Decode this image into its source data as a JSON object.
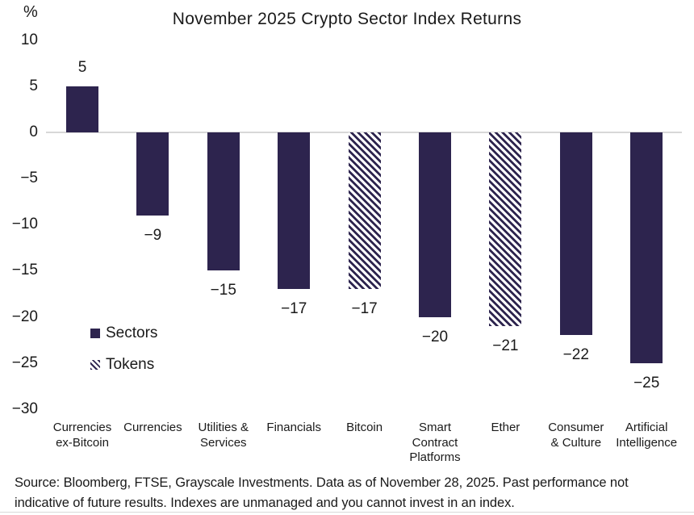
{
  "title": "November 2025 Crypto Sector Index Returns",
  "unit": "%",
  "chart_data": {
    "type": "bar",
    "title": "November 2025 Crypto Sector Index Returns",
    "unit": "%",
    "ylim": [
      -30,
      10
    ],
    "grid": "single horizontal gridline at 0 only",
    "legend_position": "inside plot, middle-left",
    "yticks": [
      {
        "value": 10,
        "label": "10"
      },
      {
        "value": 5,
        "label": "5"
      },
      {
        "value": 0,
        "label": "0"
      },
      {
        "value": -5,
        "label": "−5"
      },
      {
        "value": -10,
        "label": "−10"
      },
      {
        "value": -15,
        "label": "−15"
      },
      {
        "value": -20,
        "label": "−20"
      },
      {
        "value": -25,
        "label": "−25"
      },
      {
        "value": -30,
        "label": "−30"
      }
    ],
    "points": [
      {
        "id": "currencies-ex-bitcoin",
        "category": "Currencies\nex-Bitcoin",
        "value": 5,
        "label": "5",
        "style": "solid",
        "series": "Sectors"
      },
      {
        "id": "currencies",
        "category": "Currencies",
        "value": -9,
        "label": "−9",
        "style": "solid",
        "series": "Sectors"
      },
      {
        "id": "utilities-services",
        "category": "Utilities &\nServices",
        "value": -15,
        "label": "−15",
        "style": "solid",
        "series": "Sectors"
      },
      {
        "id": "financials",
        "category": "Financials",
        "value": -17,
        "label": "−17",
        "style": "solid",
        "series": "Sectors"
      },
      {
        "id": "bitcoin",
        "category": "Bitcoin",
        "value": -17,
        "label": "−17",
        "style": "hatched",
        "series": "Tokens"
      },
      {
        "id": "smart-contract-platforms",
        "category": "Smart\nContract\nPlatforms",
        "value": -20,
        "label": "−20",
        "style": "solid",
        "series": "Sectors"
      },
      {
        "id": "ether",
        "category": "Ether",
        "value": -21,
        "label": "−21",
        "style": "hatched",
        "series": "Tokens"
      },
      {
        "id": "consumer-culture",
        "category": "Consumer\n& Culture",
        "value": -22,
        "label": "−22",
        "style": "solid",
        "series": "Sectors"
      },
      {
        "id": "artificial-intelligence",
        "category": "Artificial\nIntelligence",
        "value": -25,
        "label": "−25",
        "style": "solid",
        "series": "Sectors"
      }
    ]
  },
  "legend": {
    "items": [
      {
        "label": "Sectors",
        "swatch": "solid"
      },
      {
        "label": "Tokens",
        "swatch": "hatched"
      }
    ]
  },
  "footer": {
    "line1": "Source: Bloomberg, FTSE, Grayscale Investments. Data as of November 28, 2025. Past performance not",
    "line2": "indicative of future results. Indexes are unmanaged and you cannot invest in an index."
  },
  "colors": {
    "bar": "#2d244e",
    "zero_line": "#d8d8d8",
    "text": "#1a1a1a",
    "bottom_rule": "#d9d9d9"
  }
}
